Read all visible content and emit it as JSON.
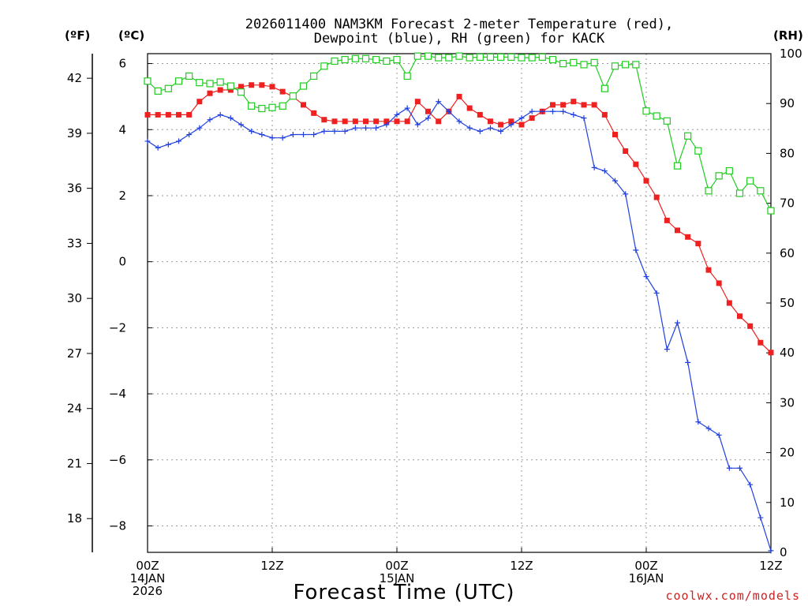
{
  "chart_data": {
    "type": "line",
    "title_lines": [
      "2026011400 NAM3KM Forecast 2-meter Temperature (red),",
      "Dewpoint (blue), RH (green) for KACK"
    ],
    "units": {
      "left_f": "(ºF)",
      "left_c": "(ºC)",
      "right_rh": "(RH)"
    },
    "xlabel": "Forecast Time (UTC)",
    "credit": "coolwx.com/models",
    "xlim": [
      0,
      60
    ],
    "ylim_c": [
      -8.8,
      6.3
    ],
    "ylim_rh": [
      0,
      100
    ],
    "c_ticks": [
      6,
      4,
      2,
      0,
      -2,
      -4,
      -6,
      -8
    ],
    "c_tick_labels": [
      "6",
      "4",
      "2",
      "0",
      "−2",
      "−4",
      "−6",
      "−8"
    ],
    "f_ticks": [
      42,
      39,
      36,
      33,
      30,
      27,
      24,
      21,
      18
    ],
    "rh_ticks": [
      100,
      90,
      80,
      70,
      60,
      50,
      40,
      30,
      20,
      10,
      0
    ],
    "x_ticks": [
      {
        "hour": 0,
        "lines": [
          "00Z",
          "14JAN",
          "2026"
        ]
      },
      {
        "hour": 12,
        "lines": [
          "12Z"
        ]
      },
      {
        "hour": 24,
        "lines": [
          "00Z",
          "15JAN"
        ]
      },
      {
        "hour": 36,
        "lines": [
          "12Z"
        ]
      },
      {
        "hour": 48,
        "lines": [
          "00Z",
          "16JAN"
        ]
      },
      {
        "hour": 60,
        "lines": [
          "12Z"
        ]
      }
    ],
    "x": [
      0,
      1,
      2,
      3,
      4,
      5,
      6,
      7,
      8,
      9,
      10,
      11,
      12,
      13,
      14,
      15,
      16,
      17,
      18,
      19,
      20,
      21,
      22,
      23,
      24,
      25,
      26,
      27,
      28,
      29,
      30,
      31,
      32,
      33,
      34,
      35,
      36,
      37,
      38,
      39,
      40,
      41,
      42,
      43,
      44,
      45,
      46,
      47,
      48,
      49,
      50,
      51,
      52,
      53,
      54,
      55,
      56,
      57,
      58,
      59,
      60
    ],
    "series": [
      {
        "name": "Temperature",
        "units": "degC",
        "color": "#ee2020",
        "marker": "filled-square",
        "values": [
          4.45,
          4.45,
          4.45,
          4.45,
          4.45,
          4.85,
          5.1,
          5.2,
          5.2,
          5.3,
          5.35,
          5.35,
          5.3,
          5.15,
          5.0,
          4.75,
          4.5,
          4.3,
          4.25,
          4.25,
          4.25,
          4.25,
          4.25,
          4.25,
          4.25,
          4.25,
          4.85,
          4.55,
          4.25,
          4.55,
          5.0,
          4.65,
          4.45,
          4.25,
          4.15,
          4.25,
          4.15,
          4.35,
          4.55,
          4.75,
          4.75,
          4.85,
          4.75,
          4.75,
          4.45,
          3.85,
          3.35,
          2.95,
          2.45,
          1.95,
          1.25,
          0.95,
          0.75,
          0.55,
          -0.25,
          -0.65,
          -1.25,
          -1.65,
          -1.95,
          -2.45,
          -2.75
        ]
      },
      {
        "name": "Dewpoint",
        "units": "degC",
        "color": "#2040e0",
        "marker": "plus",
        "values": [
          3.65,
          3.45,
          3.55,
          3.65,
          3.85,
          4.05,
          4.3,
          4.45,
          4.35,
          4.15,
          3.95,
          3.85,
          3.75,
          3.75,
          3.85,
          3.85,
          3.85,
          3.95,
          3.95,
          3.95,
          4.05,
          4.05,
          4.05,
          4.15,
          4.45,
          4.65,
          4.15,
          4.35,
          4.85,
          4.55,
          4.25,
          4.05,
          3.95,
          4.05,
          3.95,
          4.15,
          4.35,
          4.55,
          4.55,
          4.55,
          4.55,
          4.45,
          4.35,
          2.85,
          2.75,
          2.45,
          2.05,
          0.35,
          -0.45,
          -0.95,
          -2.65,
          -1.85,
          -3.05,
          -4.85,
          -5.05,
          -5.25,
          -6.25,
          -6.25,
          -6.75,
          -7.75,
          -8.75
        ]
      },
      {
        "name": "RH",
        "units": "percent",
        "color": "#20cc20",
        "marker": "open-square",
        "values": [
          94.5,
          92.5,
          93,
          94.5,
          95.5,
          94.2,
          94,
          94.3,
          93.5,
          92.3,
          89.5,
          89,
          89.2,
          89.5,
          91.5,
          93.5,
          95.5,
          97.5,
          98.5,
          98.8,
          99,
          99,
          98.8,
          98.5,
          98.8,
          95.5,
          99.5,
          99.5,
          99.2,
          99.2,
          99.5,
          99.2,
          99.3,
          99.3,
          99.3,
          99.3,
          99.2,
          99.2,
          99.3,
          98.8,
          98,
          98.2,
          97.8,
          98.2,
          93,
          97.5,
          97.8,
          97.8,
          88.5,
          87.5,
          86.5,
          77.5,
          83.5,
          80.5,
          72.5,
          75.5,
          76.5,
          72,
          74.5,
          72.5,
          68.5
        ]
      }
    ]
  }
}
